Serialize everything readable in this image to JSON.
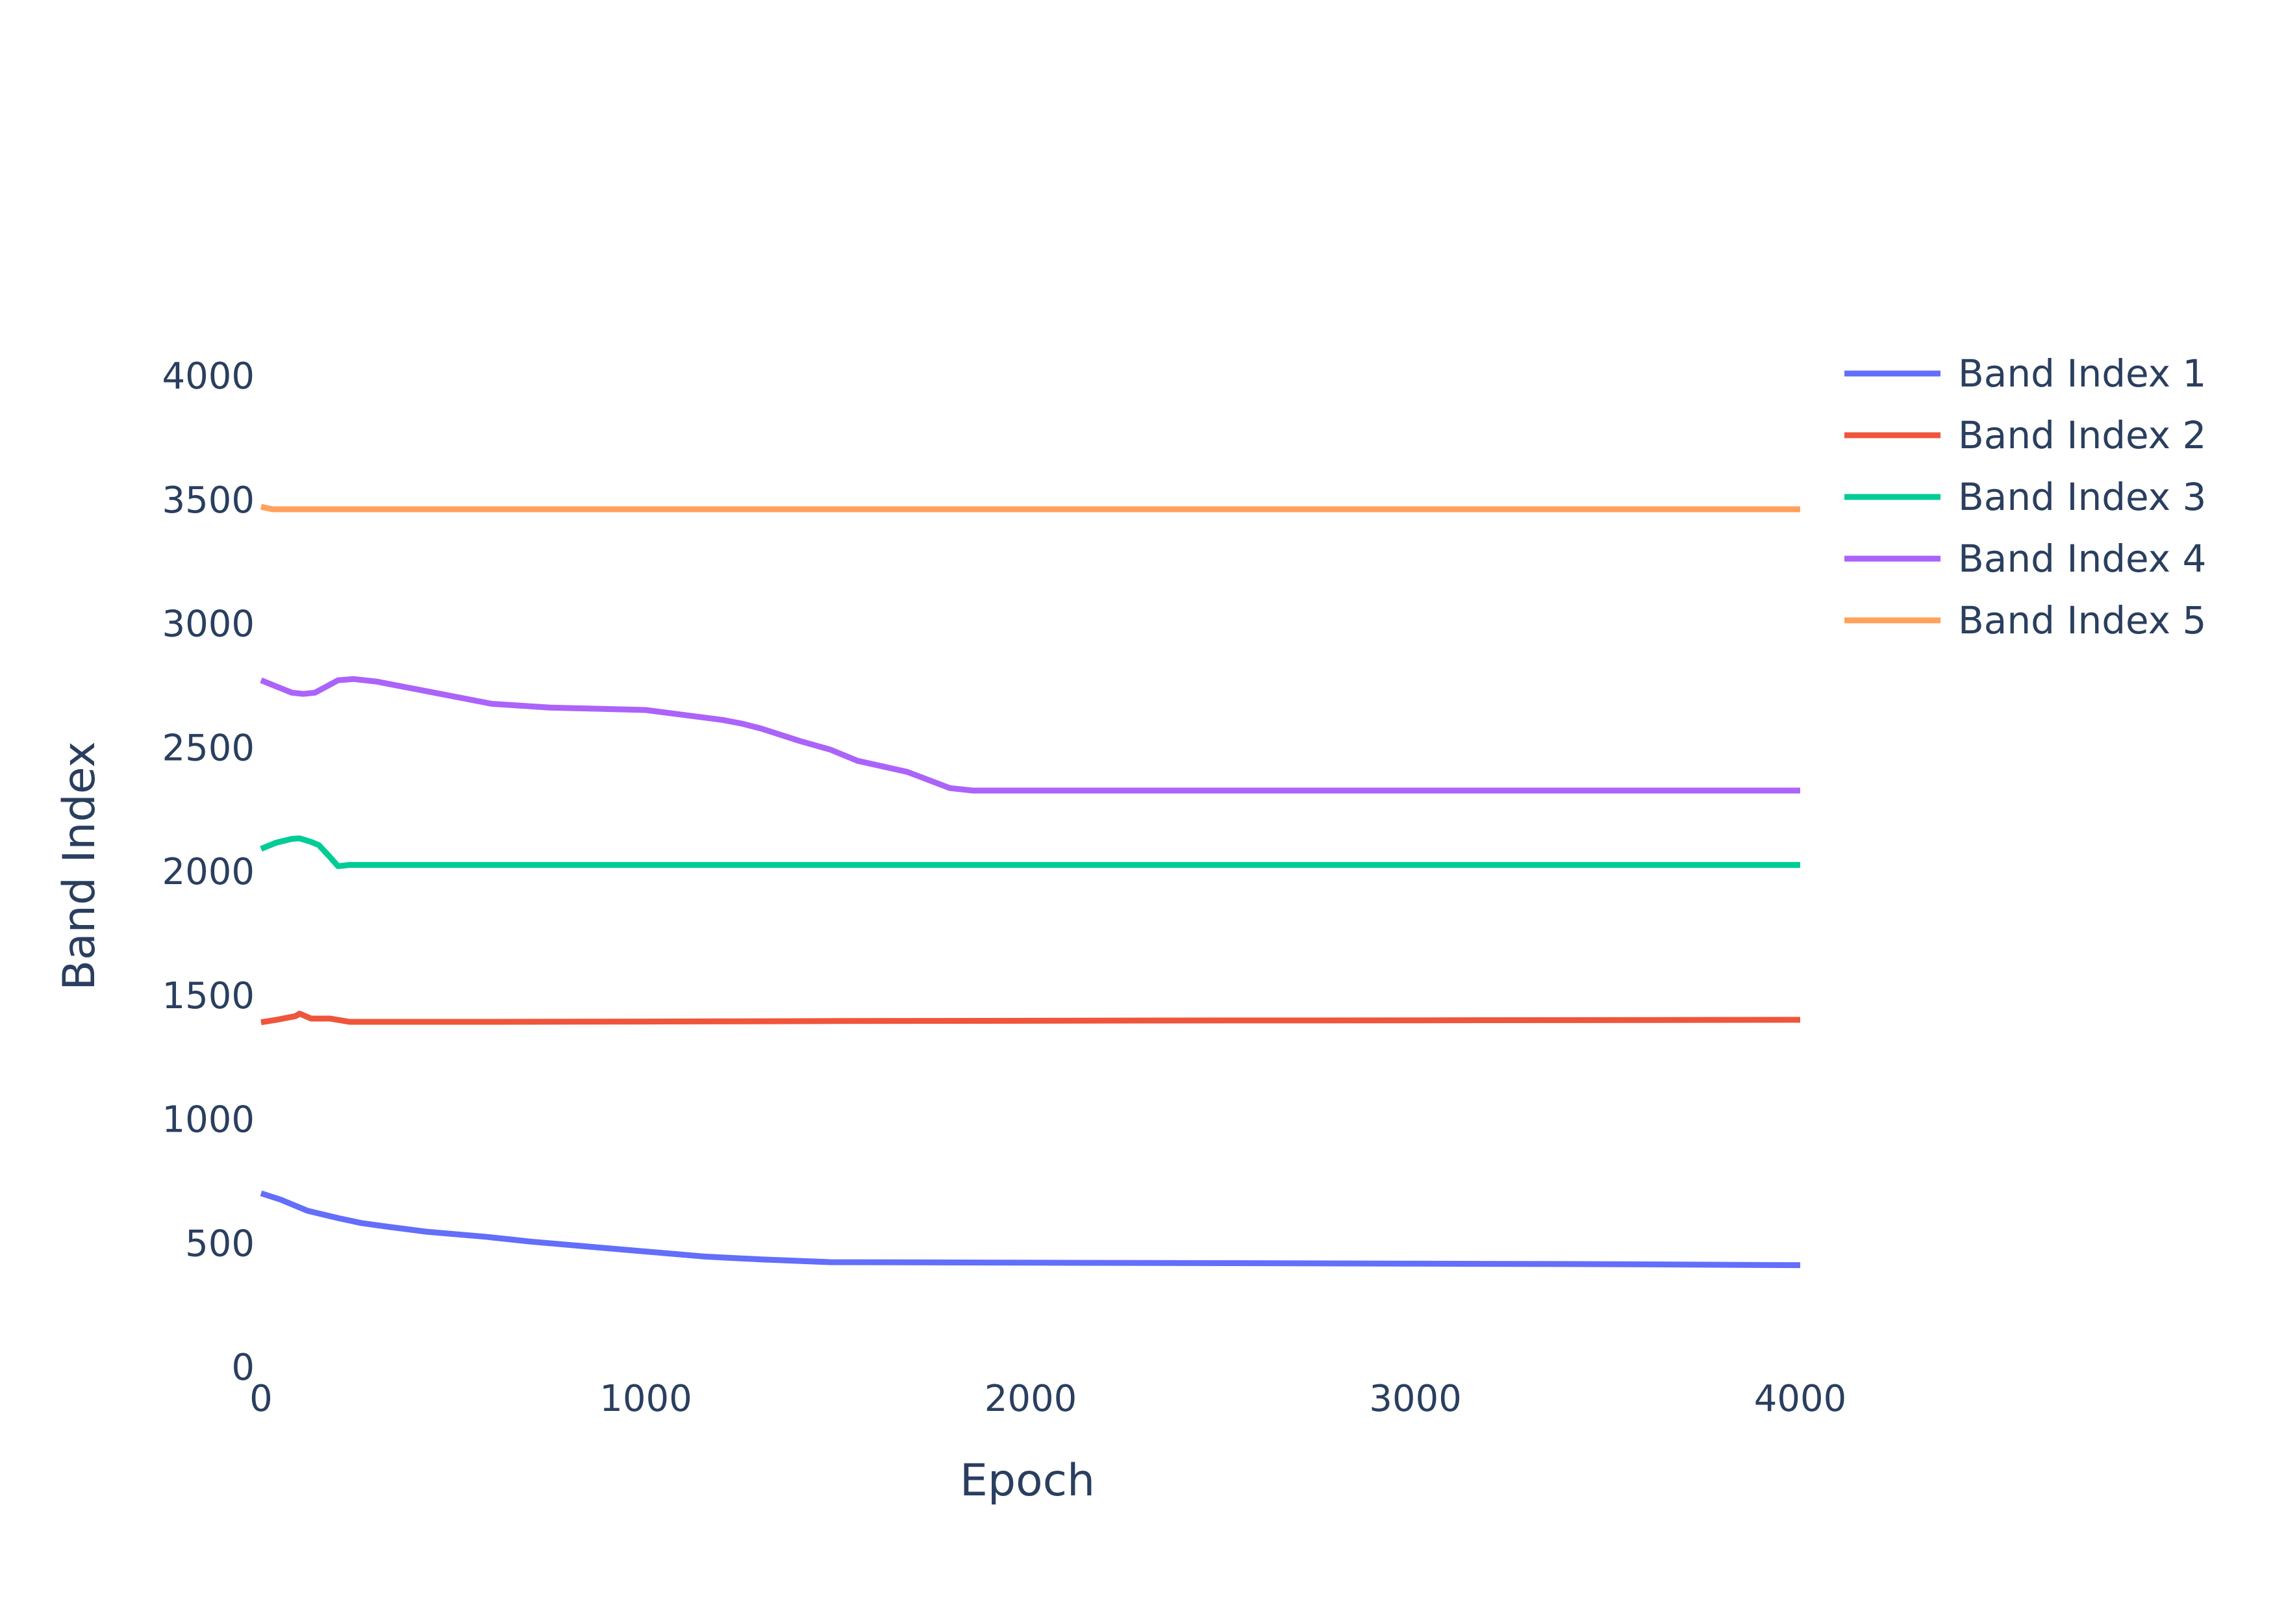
{
  "chart_data": {
    "type": "line",
    "xlabel": "Epoch",
    "ylabel": "Band Index",
    "xlim": [
      0,
      4000
    ],
    "ylim": [
      0,
      4000
    ],
    "x_ticks": [
      "0",
      "1000",
      "2000",
      "3000",
      "4000"
    ],
    "y_ticks": [
      "0",
      "500",
      "1000",
      "1500",
      "2000",
      "2500",
      "3000",
      "3500",
      "4000"
    ],
    "grid": false,
    "legend_position": "top-right",
    "series": [
      {
        "name": "Band Index 1",
        "color": "#636efa",
        "points": [
          [
            0,
            700
          ],
          [
            50,
            675
          ],
          [
            120,
            630
          ],
          [
            200,
            600
          ],
          [
            260,
            580
          ],
          [
            330,
            565
          ],
          [
            430,
            545
          ],
          [
            580,
            525
          ],
          [
            700,
            505
          ],
          [
            850,
            485
          ],
          [
            1000,
            465
          ],
          [
            1150,
            445
          ],
          [
            1300,
            433
          ],
          [
            1480,
            422
          ],
          [
            2000,
            420
          ],
          [
            2500,
            418
          ],
          [
            3000,
            416
          ],
          [
            3500,
            414
          ],
          [
            4000,
            410
          ]
        ]
      },
      {
        "name": "Band Index 2",
        "color": "#ef553b",
        "points": [
          [
            0,
            1390
          ],
          [
            40,
            1400
          ],
          [
            80,
            1412
          ],
          [
            90,
            1415
          ],
          [
            100,
            1425
          ],
          [
            130,
            1405
          ],
          [
            180,
            1405
          ],
          [
            230,
            1392
          ],
          [
            600,
            1392
          ],
          [
            1000,
            1393
          ],
          [
            1500,
            1395
          ],
          [
            2000,
            1396
          ],
          [
            2350,
            1397
          ],
          [
            3000,
            1398
          ],
          [
            4000,
            1400
          ]
        ]
      },
      {
        "name": "Band Index 3",
        "color": "#00cc96",
        "points": [
          [
            0,
            2090
          ],
          [
            40,
            2115
          ],
          [
            80,
            2130
          ],
          [
            100,
            2132
          ],
          [
            130,
            2118
          ],
          [
            150,
            2105
          ],
          [
            180,
            2055
          ],
          [
            200,
            2020
          ],
          [
            230,
            2025
          ],
          [
            500,
            2025
          ],
          [
            1000,
            2025
          ],
          [
            2000,
            2025
          ],
          [
            3000,
            2025
          ],
          [
            4000,
            2025
          ]
        ]
      },
      {
        "name": "Band Index 4",
        "color": "#ab63fa",
        "points": [
          [
            0,
            2770
          ],
          [
            40,
            2745
          ],
          [
            80,
            2720
          ],
          [
            110,
            2715
          ],
          [
            140,
            2720
          ],
          [
            170,
            2745
          ],
          [
            200,
            2770
          ],
          [
            240,
            2775
          ],
          [
            300,
            2765
          ],
          [
            350,
            2750
          ],
          [
            450,
            2720
          ],
          [
            600,
            2675
          ],
          [
            750,
            2660
          ],
          [
            1000,
            2650
          ],
          [
            1100,
            2630
          ],
          [
            1200,
            2610
          ],
          [
            1250,
            2595
          ],
          [
            1300,
            2575
          ],
          [
            1400,
            2525
          ],
          [
            1480,
            2490
          ],
          [
            1550,
            2445
          ],
          [
            1680,
            2400
          ],
          [
            1790,
            2335
          ],
          [
            1850,
            2325
          ],
          [
            2000,
            2325
          ],
          [
            3000,
            2325
          ],
          [
            4000,
            2325
          ]
        ]
      },
      {
        "name": "Band Index 5",
        "color": "#ffa15a",
        "points": [
          [
            0,
            3470
          ],
          [
            30,
            3460
          ],
          [
            100,
            3460
          ],
          [
            1000,
            3460
          ],
          [
            2000,
            3460
          ],
          [
            3000,
            3460
          ],
          [
            4000,
            3460
          ]
        ]
      }
    ]
  }
}
